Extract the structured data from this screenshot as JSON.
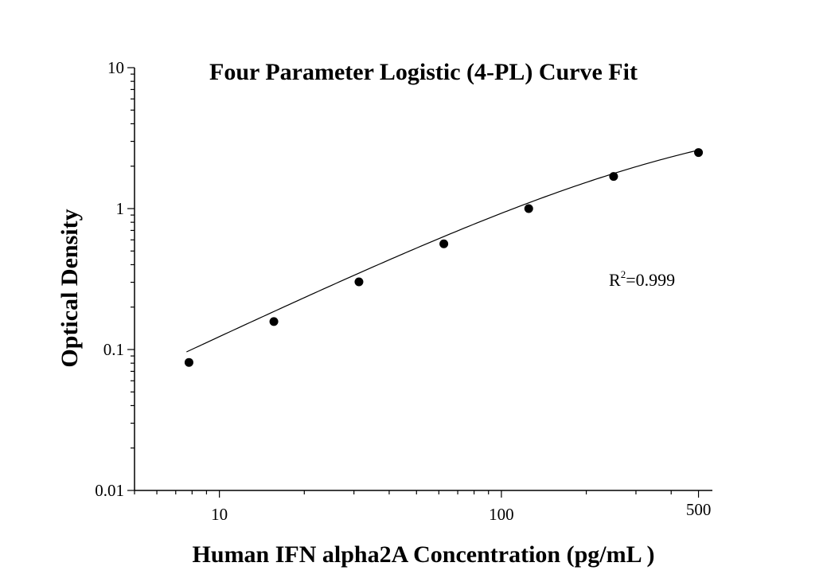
{
  "chart_data": {
    "type": "scatter",
    "title": "Four Parameter Logistic (4-PL) Curve Fit",
    "xlabel": "Human IFN alpha2A Concentration (pg/mL )",
    "ylabel": "Optical Density",
    "x_scale": "log",
    "y_scale": "log",
    "xlim": [
      5,
      560
    ],
    "ylim": [
      0.01,
      10
    ],
    "x_ticks": [
      {
        "value": 10,
        "label": "10"
      },
      {
        "value": 100,
        "label": "100"
      },
      {
        "value": 500,
        "label": "500"
      }
    ],
    "y_ticks": [
      {
        "value": 0.01,
        "label": "0.01"
      },
      {
        "value": 0.1,
        "label": "0.1"
      },
      {
        "value": 1,
        "label": "1"
      },
      {
        "value": 10,
        "label": "10"
      }
    ],
    "x": [
      7.8,
      15.6,
      31.25,
      62.5,
      125,
      250,
      500
    ],
    "y": [
      0.081,
      0.158,
      0.302,
      0.562,
      1.0,
      1.69,
      2.5
    ],
    "fit": {
      "model": "4PL",
      "A": 0.0,
      "B": 0.95,
      "C": 500,
      "D": 5.2
    },
    "annotation": {
      "base": "R",
      "sup": "2",
      "rest": "=0.999"
    },
    "grid": false,
    "legend": "none"
  }
}
